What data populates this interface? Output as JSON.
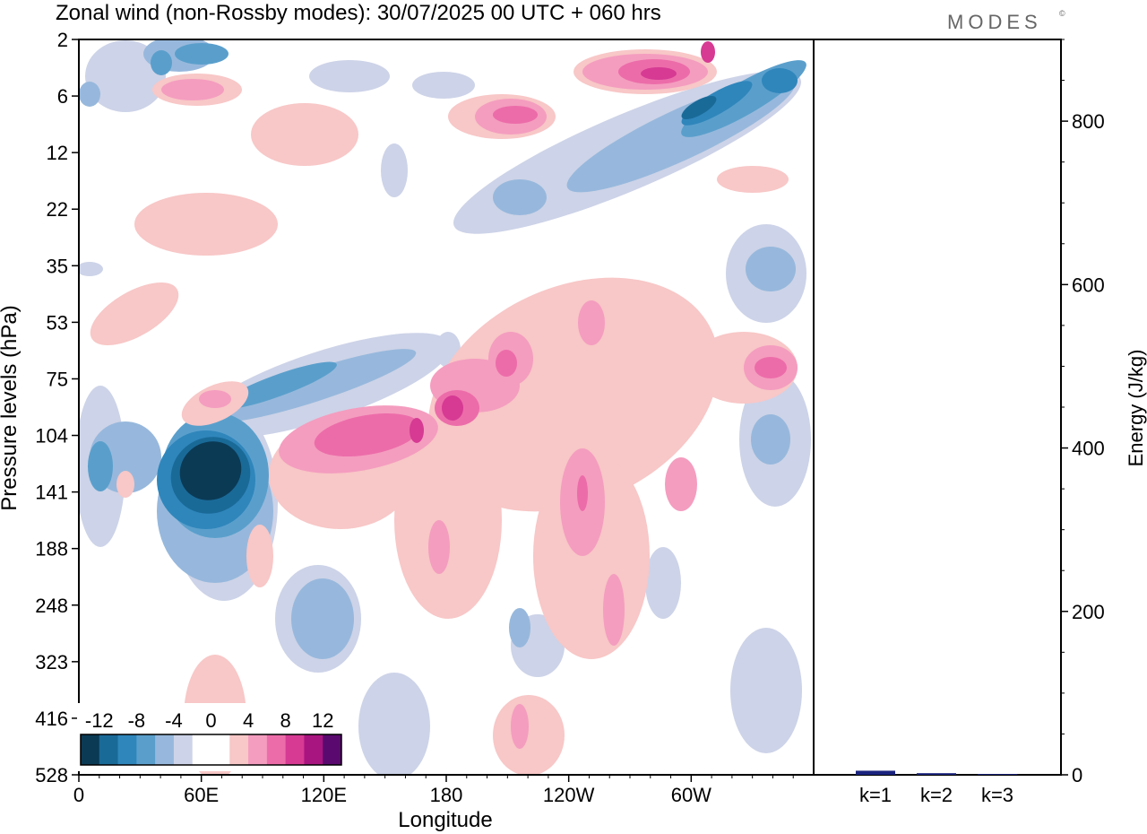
{
  "title": "Zonal wind (non-Rossby modes):  30/07/2025  00 UTC  + 060 hrs",
  "brand": "MODES",
  "brand_mark": "©",
  "chart_data": [
    {
      "type": "heatmap",
      "title": "Zonal wind (non-Rossby modes)",
      "xlabel": "Longitude",
      "ylabel": "Pressure levels (hPa)",
      "x_ticks": [
        "0",
        "60E",
        "120E",
        "180",
        "120W",
        "60W"
      ],
      "x_tick_positions_deg": [
        0,
        60,
        120,
        180,
        240,
        300
      ],
      "xlim_deg": [
        0,
        360
      ],
      "y_ticks": [
        "2",
        "6",
        "12",
        "22",
        "35",
        "53",
        "75",
        "104",
        "141",
        "188",
        "248",
        "323",
        "416",
        "528"
      ],
      "colorbar": {
        "labels": [
          "-12",
          "-8",
          "-4",
          "0",
          "4",
          "8",
          "12"
        ],
        "levels": [
          -14,
          -12,
          -10,
          -8,
          -6,
          -4,
          -2,
          2,
          4,
          6,
          8,
          10,
          12,
          14
        ],
        "colors": [
          "#0b3a55",
          "#1a6a98",
          "#2f86bb",
          "#5a9fcc",
          "#97b8dc",
          "#cdd3e8",
          "#ffffff",
          "#ffffff",
          "#f8c7c7",
          "#f49dbf",
          "#ec6ca9",
          "#d63a93",
          "#a91580",
          "#5a0a6e"
        ]
      },
      "features": [
        {
          "name": "strong-easterly-core",
          "lon": 70,
          "level": "141",
          "value": -14
        },
        {
          "name": "easterly-band",
          "lon": 120,
          "level": "75",
          "value": -8
        },
        {
          "name": "westerly-band",
          "lon": 150,
          "level": "104",
          "value": 9
        },
        {
          "name": "westerly-peak-180",
          "lon": 182,
          "level": "104",
          "value": 11
        },
        {
          "name": "upper-westerly",
          "lon": 285,
          "level": "6",
          "value": 12
        },
        {
          "name": "upper-easterly",
          "lon": 315,
          "level": "6",
          "value": -10
        }
      ]
    },
    {
      "type": "bar",
      "categories": [
        "k=1",
        "k=2",
        "k=3"
      ],
      "values": [
        5,
        2,
        1
      ],
      "ylabel": "Energy (J/kg)",
      "ylim": [
        0,
        900
      ],
      "y_ticks": [
        0,
        200,
        400,
        600,
        800
      ],
      "bar_color": "#1a237e"
    }
  ]
}
